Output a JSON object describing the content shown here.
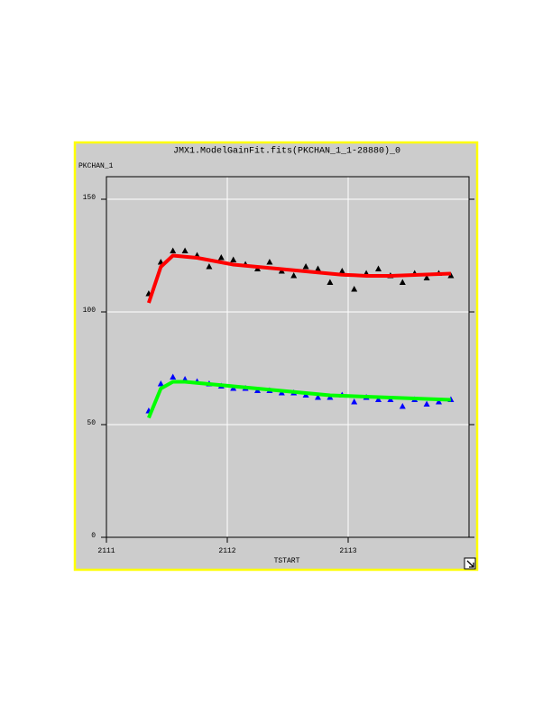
{
  "chart_data": {
    "type": "scatter",
    "title": "JMX1.ModelGainFit.fits(PKCHAN_1_1-28880)_0",
    "ylabel": "PKCHAN_1",
    "xlabel": "TSTART",
    "xlim": [
      2111,
      2114
    ],
    "ylim": [
      0,
      160
    ],
    "xticks": [
      2111,
      2112,
      2113
    ],
    "yticks": [
      0,
      50,
      100,
      150
    ],
    "grid": true,
    "x": [
      2111.35,
      2111.45,
      2111.55,
      2111.65,
      2111.75,
      2111.85,
      2111.95,
      2112.05,
      2112.15,
      2112.25,
      2112.35,
      2112.45,
      2112.55,
      2112.65,
      2112.75,
      2112.85,
      2112.95,
      2113.05,
      2113.15,
      2113.25,
      2113.35,
      2113.45,
      2113.55,
      2113.65,
      2113.75,
      2113.85
    ],
    "series": [
      {
        "color": "#000000",
        "marker": "triangle",
        "values": [
          108,
          122,
          127,
          127,
          125,
          120,
          124,
          123,
          121,
          119,
          122,
          118,
          116,
          120,
          119,
          113,
          118,
          110,
          117,
          119,
          116,
          113,
          117,
          115,
          117,
          116
        ]
      },
      {
        "color": "#ff0000",
        "marker": "line",
        "values": [
          104,
          120,
          125,
          124.5,
          124,
          123,
          122,
          121,
          120.5,
          120,
          119.5,
          119,
          118.5,
          118,
          117.5,
          117,
          116.5,
          116.3,
          116,
          116,
          116,
          116.2,
          116.4,
          116.6,
          116.8,
          117
        ]
      },
      {
        "color": "#0000ff",
        "marker": "triangle",
        "values": [
          56,
          68,
          71,
          70,
          69,
          68,
          67,
          66,
          66,
          65,
          65,
          64,
          64,
          63,
          62,
          62,
          63,
          60,
          62,
          61,
          61,
          58,
          61,
          59,
          60,
          61
        ]
      },
      {
        "color": "#00ff00",
        "marker": "line",
        "values": [
          53,
          66,
          69,
          69,
          68.5,
          68,
          67.5,
          67,
          66.5,
          66,
          65.5,
          65,
          64.5,
          64,
          63.5,
          63,
          62.8,
          62.6,
          62.4,
          62.2,
          62,
          61.8,
          61.6,
          61.4,
          61.2,
          61
        ]
      }
    ]
  }
}
